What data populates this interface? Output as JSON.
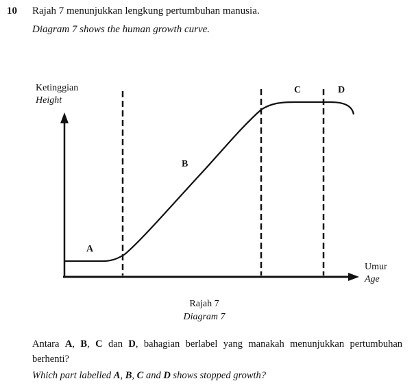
{
  "question": {
    "number": "10",
    "malay_text": "Rajah 7 menunjukkan lengkung pertumbuhan manusia.",
    "english_text": "Diagram 7 shows the human growth curve."
  },
  "diagram": {
    "y_axis_label_malay": "Ketinggian",
    "y_axis_label_english": "Height",
    "x_axis_label_malay": "Umur",
    "x_axis_label_english": "Age",
    "region_labels": [
      "A",
      "B",
      "C",
      "D"
    ],
    "caption_malay": "Rajah 7",
    "caption_english": "Diagram 7"
  },
  "prompt_malay": {
    "part1": "Antara ",
    "A": "A",
    "sep1": ", ",
    "B": "B",
    "sep2": ", ",
    "C": "C",
    "sep3": " dan ",
    "D": "D",
    "part2": ", bahagian berlabel yang manakah menunjukkan pertumbuhan berhenti?"
  },
  "prompt_english": {
    "part1": "Which part labelled ",
    "A": "A",
    "sep1": ", ",
    "B": "B",
    "sep2": ", ",
    "C": "C",
    "sep3": " and ",
    "D": "D",
    "part2": " shows stopped growth?"
  }
}
